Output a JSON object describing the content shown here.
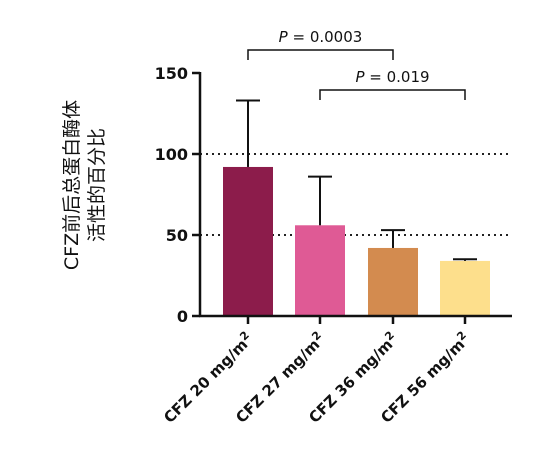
{
  "chart_data": {
    "type": "bar",
    "ylabel_lines": [
      "CFZ前后总蛋白酶体",
      "活性的百分比"
    ],
    "categories": [
      "CFZ 20 mg/m2",
      "CFZ 27 mg/m2",
      "CFZ 36 mg/m2",
      "CFZ 56 mg/m2"
    ],
    "category_labels": [
      {
        "base": "CFZ 20 mg/m",
        "sup": "2"
      },
      {
        "base": "CFZ 27 mg/m",
        "sup": "2"
      },
      {
        "base": "CFZ 36 mg/m",
        "sup": "2"
      },
      {
        "base": "CFZ 56 mg/m",
        "sup": "2"
      }
    ],
    "values": [
      92,
      56,
      42,
      34
    ],
    "error_upper": [
      133,
      86,
      53,
      35
    ],
    "colors": [
      "#8c1c4b",
      "#df5a95",
      "#d38b4f",
      "#fddf8c"
    ],
    "ylim": [
      0,
      150
    ],
    "yticks": [
      "0",
      "50",
      "100",
      "150"
    ],
    "ytick_values": [
      0,
      50,
      100,
      150
    ],
    "reference_lines": [
      50,
      100
    ],
    "annotations": [
      {
        "text": "P = 0.0003",
        "from": 0,
        "to": 2
      },
      {
        "text": "P = 0.019",
        "from": 1,
        "to": 3
      }
    ]
  }
}
